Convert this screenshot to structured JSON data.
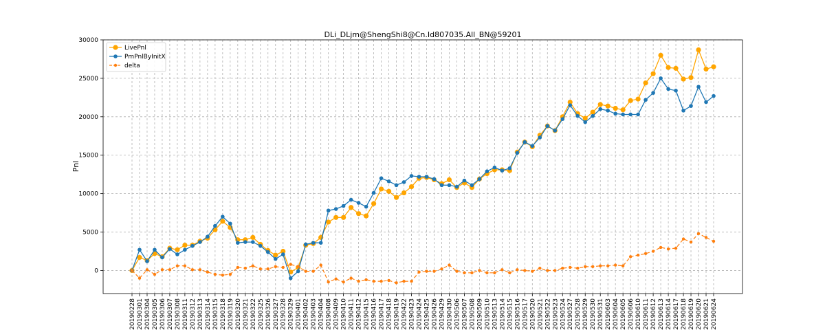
{
  "chart_data": {
    "type": "line",
    "title": "DLi_DLjm@ShengShi8@Cn.Id807035.All_BN@59201",
    "xlabel": "",
    "ylabel": "Pnl",
    "ylim": [
      -3000,
      30000
    ],
    "yticks": [
      0,
      5000,
      10000,
      15000,
      20000,
      25000,
      30000
    ],
    "grid": true,
    "legend": "top-left",
    "x": [
      "20190228",
      "20190301",
      "20190304",
      "20190305",
      "20190306",
      "20190307",
      "20190308",
      "20190311",
      "20190312",
      "20190313",
      "20190314",
      "20190315",
      "20190318",
      "20190319",
      "20190320",
      "20190321",
      "20190322",
      "20190325",
      "20190326",
      "20190327",
      "20190328",
      "20190329",
      "20190401",
      "20190402",
      "20190403",
      "20190404",
      "20190408",
      "20190409",
      "20190410",
      "20190411",
      "20190412",
      "20190415",
      "20190416",
      "20190417",
      "20190418",
      "20190419",
      "20190422",
      "20190423",
      "20190424",
      "20190425",
      "20190426",
      "20190429",
      "20190430",
      "20190506",
      "20190507",
      "20190508",
      "20190509",
      "20190510",
      "20190513",
      "20190514",
      "20190515",
      "20190516",
      "20190517",
      "20190520",
      "20190521",
      "20190522",
      "20190523",
      "20190524",
      "20190527",
      "20190528",
      "20190529",
      "20190530",
      "20190531",
      "20190603",
      "20190604",
      "20190605",
      "20190606",
      "20190610",
      "20190611",
      "20190612",
      "20190613",
      "20190614",
      "20190617",
      "20190618",
      "20190619",
      "20190620",
      "20190621",
      "20190624"
    ],
    "series": [
      {
        "name": "LivePnl",
        "color": "#ffa500",
        "style": "solid",
        "values": [
          0,
          1700,
          1300,
          2200,
          1800,
          2900,
          2700,
          3300,
          3300,
          3800,
          4200,
          5300,
          6400,
          5600,
          4000,
          4000,
          4300,
          3400,
          2600,
          2000,
          2500,
          -200,
          400,
          3300,
          3500,
          4300,
          6300,
          6900,
          6900,
          8200,
          7400,
          7100,
          8700,
          10600,
          10300,
          9500,
          10100,
          10900,
          12000,
          12100,
          11800,
          11300,
          11800,
          10800,
          11400,
          10800,
          11900,
          12600,
          13100,
          13100,
          13000,
          15400,
          16700,
          16100,
          17600,
          18800,
          18200,
          20000,
          21900,
          20400,
          19800,
          20600,
          21600,
          21400,
          21100,
          20900,
          22100,
          22300,
          24400,
          25600,
          28000,
          26400,
          26300,
          24900,
          25100,
          28700,
          26200,
          26500
        ]
      },
      {
        "name": "PmPnlByInitX",
        "color": "#1f77b4",
        "style": "solid",
        "values": [
          0,
          2700,
          1200,
          2700,
          1700,
          2800,
          2100,
          2700,
          3200,
          3700,
          4400,
          5800,
          7000,
          6100,
          3600,
          3700,
          3700,
          3200,
          2400,
          1500,
          2100,
          -1000,
          -100,
          3400,
          3600,
          3600,
          7800,
          8000,
          8400,
          9200,
          8800,
          8300,
          10100,
          12000,
          11600,
          11100,
          11500,
          12300,
          12200,
          12200,
          11900,
          11100,
          11100,
          10900,
          11700,
          11100,
          11900,
          12900,
          13400,
          13000,
          13300,
          15300,
          16700,
          16200,
          17300,
          18800,
          18200,
          19700,
          21500,
          20100,
          19300,
          20100,
          21000,
          20800,
          20400,
          20300,
          20300,
          20300,
          22200,
          23100,
          25000,
          23600,
          23400,
          20800,
          21400,
          23900,
          21900,
          22700
        ]
      },
      {
        "name": "delta",
        "color": "#ff7f0e",
        "style": "dashed",
        "values": [
          0,
          -1000,
          100,
          -500,
          100,
          100,
          600,
          600,
          100,
          100,
          -200,
          -500,
          -600,
          -500,
          400,
          300,
          600,
          200,
          200,
          500,
          400,
          800,
          500,
          -100,
          -100,
          700,
          -1500,
          -1100,
          -1500,
          -1000,
          -1400,
          -1200,
          -1400,
          -1400,
          -1300,
          -1600,
          -1400,
          -1400,
          -200,
          -100,
          -100,
          200,
          700,
          -100,
          -300,
          -300,
          0,
          -300,
          -300,
          100,
          -300,
          100,
          0,
          -100,
          300,
          0,
          0,
          300,
          400,
          300,
          500,
          500,
          600,
          600,
          700,
          600,
          1800,
          2000,
          2200,
          2500,
          3000,
          2800,
          2900,
          4100,
          3700,
          4800,
          4300,
          3800
        ]
      }
    ]
  }
}
